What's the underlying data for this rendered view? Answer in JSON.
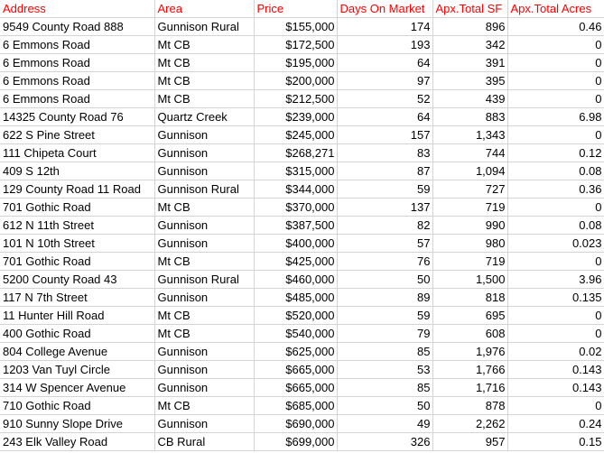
{
  "header_color": "#ff0000",
  "columns": [
    "Address",
    "Area",
    "Price",
    "Days On Market",
    "Apx.Total SF",
    "Apx.Total Acres"
  ],
  "rows": [
    [
      "9549 County Road 888",
      "Gunnison Rural",
      "$155,000",
      "174",
      "896",
      "0.46"
    ],
    [
      "6 Emmons Road",
      "Mt CB",
      "$172,500",
      "193",
      "342",
      "0"
    ],
    [
      "6 Emmons Road",
      "Mt CB",
      "$195,000",
      "64",
      "391",
      "0"
    ],
    [
      "6 Emmons Road",
      "Mt CB",
      "$200,000",
      "97",
      "395",
      "0"
    ],
    [
      "6 Emmons Road",
      "Mt CB",
      "$212,500",
      "52",
      "439",
      "0"
    ],
    [
      "14325 County Road 76",
      "Quartz Creek",
      "$239,000",
      "64",
      "883",
      "6.98"
    ],
    [
      "622 S Pine Street",
      "Gunnison",
      "$245,000",
      "157",
      "1,343",
      "0"
    ],
    [
      "111 Chipeta Court",
      "Gunnison",
      "$268,271",
      "83",
      "744",
      "0.12"
    ],
    [
      "409 S 12th",
      "Gunnison",
      "$315,000",
      "87",
      "1,094",
      "0.08"
    ],
    [
      "129 County Road 11 Road",
      "Gunnison Rural",
      "$344,000",
      "59",
      "727",
      "0.36"
    ],
    [
      "701 Gothic Road",
      "Mt CB",
      "$370,000",
      "137",
      "719",
      "0"
    ],
    [
      "612 N 11th Street",
      "Gunnison",
      "$387,500",
      "82",
      "990",
      "0.08"
    ],
    [
      "101 N 10th Street",
      "Gunnison",
      "$400,000",
      "57",
      "980",
      "0.023"
    ],
    [
      "701 Gothic Road",
      "Mt CB",
      "$425,000",
      "76",
      "719",
      "0"
    ],
    [
      "5200 County Road 43",
      "Gunnison Rural",
      "$460,000",
      "50",
      "1,500",
      "3.96"
    ],
    [
      "117 N 7th Street",
      "Gunnison",
      "$485,000",
      "89",
      "818",
      "0.135"
    ],
    [
      "11 Hunter Hill Road",
      "Mt CB",
      "$520,000",
      "59",
      "695",
      "0"
    ],
    [
      "400 Gothic Road",
      "Mt CB",
      "$540,000",
      "79",
      "608",
      "0"
    ],
    [
      "804 College Avenue",
      "Gunnison",
      "$625,000",
      "85",
      "1,976",
      "0.02"
    ],
    [
      "1203 Van Tuyl Circle",
      "Gunnison",
      "$665,000",
      "53",
      "1,766",
      "0.143"
    ],
    [
      "314 W Spencer Avenue",
      "Gunnison",
      "$665,000",
      "85",
      "1,716",
      "0.143"
    ],
    [
      "710 Gothic Road",
      "Mt CB",
      "$685,000",
      "50",
      "878",
      "0"
    ],
    [
      "910 Sunny Slope Drive",
      "Gunnison",
      "$690,000",
      "49",
      "2,262",
      "0.24"
    ],
    [
      "243 Elk Valley Road",
      "CB Rural",
      "$699,000",
      "326",
      "957",
      "0.15"
    ]
  ]
}
